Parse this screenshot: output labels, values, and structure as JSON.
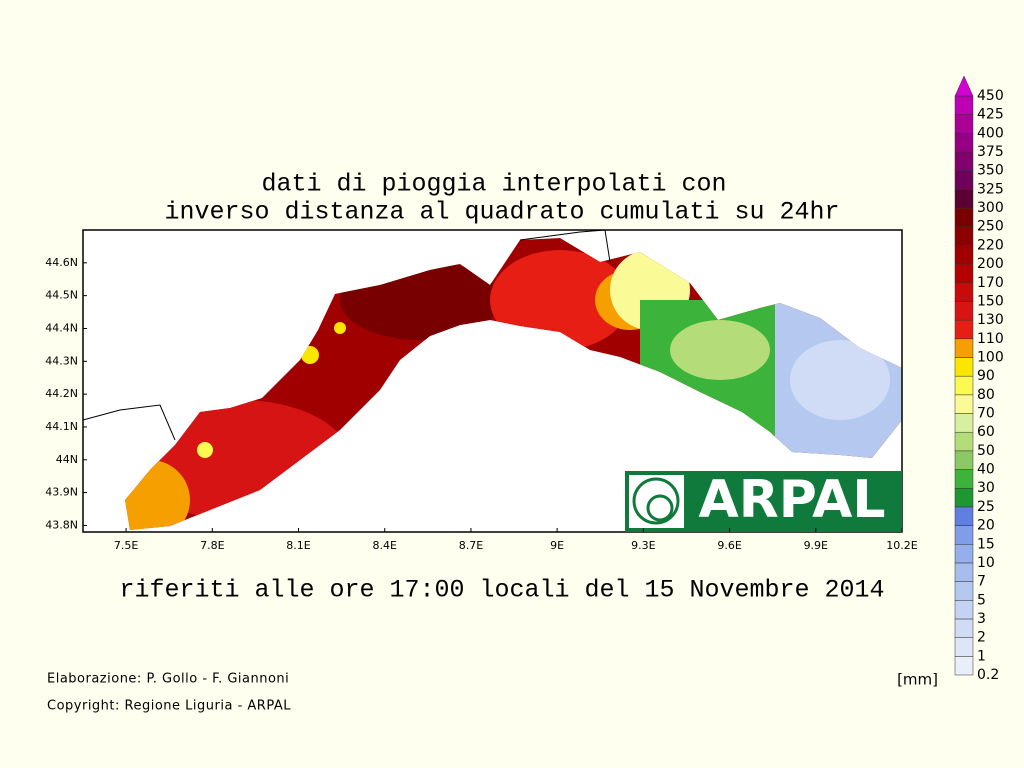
{
  "map_title": [
    "dati di pioggia interpolati con",
    "inverso distanza al quadrato cumulati su 24hr"
  ],
  "subtitle": "riferiti alle ore 17:00 locali del 15 Novembre 2014",
  "map": {
    "lonlim": [
      7.35,
      10.2
    ],
    "latlim": [
      43.78,
      44.7
    ],
    "lon_ticks": [
      {
        "value": 7.5,
        "label": "7.5E"
      },
      {
        "value": 7.8,
        "label": "7.8E"
      },
      {
        "value": 8.1,
        "label": "8.1E"
      },
      {
        "value": 8.4,
        "label": "8.4E"
      },
      {
        "value": 8.7,
        "label": "8.7E"
      },
      {
        "value": 9,
        "label": "9E"
      },
      {
        "value": 9.3,
        "label": "9.3E"
      },
      {
        "value": 9.6,
        "label": "9.6E"
      },
      {
        "value": 9.9,
        "label": "9.9E"
      },
      {
        "value": 10.2,
        "label": "10.2E"
      }
    ],
    "lat_ticks": [
      {
        "value": 43.8,
        "label": "43.8N"
      },
      {
        "value": 43.9,
        "label": "43.9N"
      },
      {
        "value": 44,
        "label": "44N"
      },
      {
        "value": 44.1,
        "label": "44.1N"
      },
      {
        "value": 44.2,
        "label": "44.2N"
      },
      {
        "value": 44.3,
        "label": "44.3N"
      },
      {
        "value": 44.4,
        "label": "44.4N"
      },
      {
        "value": 44.5,
        "label": "44.5N"
      },
      {
        "value": 44.6,
        "label": "44.6N"
      }
    ]
  },
  "legend": {
    "unit": "[mm]",
    "levels": [
      0.2,
      1,
      2,
      3,
      5,
      7,
      10,
      15,
      20,
      25,
      30,
      40,
      50,
      60,
      70,
      80,
      90,
      100,
      110,
      130,
      150,
      170,
      200,
      220,
      250,
      300,
      325,
      350,
      375,
      400,
      425,
      450
    ],
    "colors": [
      "#e8eefa",
      "#dde6f8",
      "#d0dcf6",
      "#c4d3f3",
      "#b5c8f0",
      "#a6bdee",
      "#95afec",
      "#7f9de8",
      "#5f80e0",
      "#1e9632",
      "#3cb43c",
      "#8cc864",
      "#b4dc78",
      "#d7f0a0",
      "#fafa96",
      "#fafa50",
      "#fae600",
      "#f5a000",
      "#e61e14",
      "#d71414",
      "#c80a0a",
      "#b40000",
      "#a00000",
      "#8c0000",
      "#780000",
      "#5a0032",
      "#6e005a",
      "#82006e",
      "#960082",
      "#aa0096",
      "#be00b4",
      "#d200d2"
    ]
  },
  "logo": "ARPAL",
  "credits": [
    "Elaborazione: P. Gollo - F. Giannoni",
    "Copyright: Regione Liguria - ARPAL"
  ]
}
